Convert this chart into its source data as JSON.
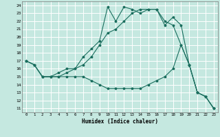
{
  "xlabel": "Humidex (Indice chaleur)",
  "bg_color": "#c5e8e0",
  "grid_color": "#ffffff",
  "line_color": "#1a6e5e",
  "xlim": [
    -0.5,
    23.5
  ],
  "ylim": [
    10.5,
    24.5
  ],
  "xticks": [
    0,
    1,
    2,
    3,
    4,
    5,
    6,
    7,
    8,
    9,
    10,
    11,
    12,
    13,
    14,
    15,
    16,
    17,
    18,
    19,
    20,
    21,
    22,
    23
  ],
  "yticks": [
    11,
    12,
    13,
    14,
    15,
    16,
    17,
    18,
    19,
    20,
    21,
    22,
    23,
    24
  ],
  "line1_y": [
    17.0,
    16.5,
    15.0,
    15.0,
    15.0,
    15.5,
    16.0,
    16.5,
    17.5,
    19.0,
    20.5,
    21.0,
    22.0,
    23.0,
    23.5,
    23.5,
    23.5,
    22.0,
    21.5,
    19.0,
    16.5,
    13.0,
    12.5,
    11.0
  ],
  "line2_y": [
    17.0,
    16.5,
    15.0,
    15.0,
    15.5,
    16.0,
    16.0,
    17.5,
    18.5,
    19.5,
    23.8,
    22.0,
    23.8,
    23.5,
    23.0,
    23.5,
    23.5,
    21.5,
    22.5,
    21.5,
    16.5,
    13.0,
    12.5,
    11.0
  ],
  "line3_y": [
    17.0,
    16.5,
    15.0,
    15.0,
    15.0,
    15.0,
    15.0,
    15.0,
    14.5,
    14.0,
    13.5,
    13.5,
    13.5,
    13.5,
    13.5,
    14.0,
    14.5,
    15.0,
    16.0,
    19.0,
    16.5,
    13.0,
    12.5,
    11.0
  ]
}
